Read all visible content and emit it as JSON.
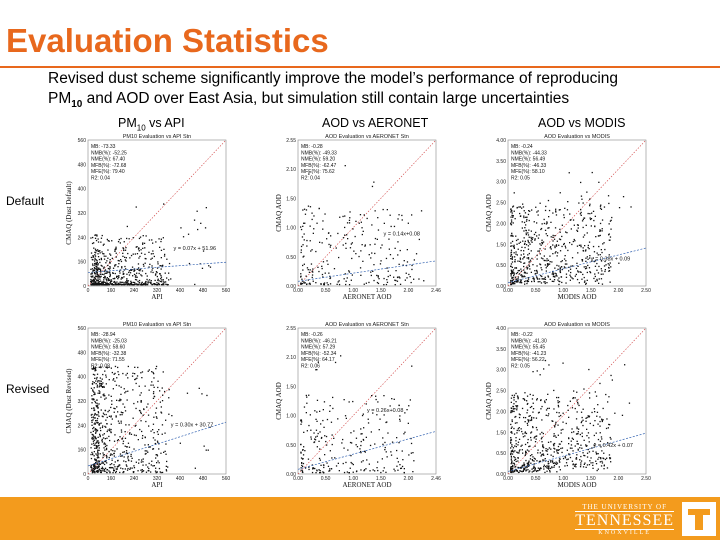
{
  "slide": {
    "title": "Evaluation Statistics",
    "subtitle_line1": "Revised dust scheme significantly improve the model’s performance of reproducing",
    "subtitle_line2_prefix": "PM",
    "subtitle_line2_sub": "10",
    "subtitle_line2_rest": " and AOD over East Asia, but simulation still contain large uncertainties"
  },
  "columns": [
    {
      "prefix": "PM",
      "sub": "10",
      "rest": " vs API"
    },
    {
      "prefix": "AOD vs AERONET",
      "sub": "",
      "rest": ""
    },
    {
      "prefix": "AOD vs MODIS",
      "sub": "",
      "rest": ""
    }
  ],
  "rows": {
    "default_label": "Default",
    "revised_label": "Revised"
  },
  "panels": [
    {
      "id": "pm-default",
      "title": "PM10 Evaluation vs API Stn",
      "xlabel": "API",
      "ylabel": "CMAQ (Dust Default)",
      "xticks": [
        "0",
        "160",
        "240",
        "320",
        "400",
        "480",
        "560"
      ],
      "yticks": [
        "560",
        "480",
        "400",
        "320",
        "240",
        "160",
        "0"
      ],
      "stats": [
        "MB: -73.33",
        "NMB(%): -52.25",
        "NME(%): 67.40",
        "MFB(%): -72.68",
        "MFE(%): 79.40",
        "R2: 0.04"
      ],
      "fit": "y = 0.07x + 51.96",
      "xmax": 560,
      "ymax": 560,
      "slope": 0.07,
      "intercept": 51.96,
      "fitx": 0.62,
      "fity": 0.52
    },
    {
      "id": "aeronet-default",
      "title": "AOD Evaluation vs AERONET Stn",
      "xlabel": "AERONET AOD",
      "ylabel": "CMAQ AOD",
      "xticks": [
        "0.00",
        "0.50",
        "1.00",
        "1.50",
        "2.00",
        "2.46"
      ],
      "yticks": [
        "2.55",
        "2.10",
        "1.50",
        "1.00",
        "0.50",
        "0.00"
      ],
      "stats": [
        "MB: -0.28",
        "NMB(%): -49.33",
        "NME(%): 59.20",
        "MFB(%): -62.47",
        "MFE(%): 75.62",
        "R2: 0.04"
      ],
      "fit": "y = 0.14x+0.08",
      "xmax": 2.5,
      "ymax": 2.5,
      "slope": 0.14,
      "intercept": 0.08,
      "fitx": 0.62,
      "fity": 0.62
    },
    {
      "id": "modis-default",
      "title": "AOD Evaluation vs MODIS",
      "xlabel": "MODIS AOD",
      "ylabel": "CMAQ AOD",
      "xticks": [
        "0.00",
        "0.50",
        "1.00",
        "1.50",
        "2.00",
        "2.50"
      ],
      "yticks": [
        "4.00",
        "3.50",
        "3.00",
        "2.50",
        "2.00",
        "1.50",
        "0.50",
        "0.00"
      ],
      "stats": [
        "MB: -0.24",
        "NMB(%): -44.33",
        "NME(%): 56.49",
        "MFB(%): -46.33",
        "MFE(%): 58.10",
        "R2: 0.05"
      ],
      "fit": "y = 0.38x + 0.09",
      "xmax": 2.5,
      "ymax": 4.0,
      "slope": 0.38,
      "intercept": 0.09,
      "fitx": 0.6,
      "fity": 0.45
    },
    {
      "id": "pm-revised",
      "title": "PM10 Evaluation vs API Stn",
      "xlabel": "API",
      "ylabel": "CMAQ (Dust Revised)",
      "xticks": [
        "0",
        "160",
        "240",
        "320",
        "400",
        "480",
        "560"
      ],
      "yticks": [
        "560",
        "480",
        "400",
        "320",
        "240",
        "160",
        "0"
      ],
      "stats": [
        "MB: -28.94",
        "NMB(%): -25.03",
        "NME(%): 58.60",
        "MFB(%): -32.38",
        "MFE(%): 71.55",
        "R2: 0.08"
      ],
      "fit": "y = 0.30x + 30.77",
      "xmax": 560,
      "ymax": 560,
      "slope": 0.3,
      "intercept": 30.77,
      "fitx": 0.6,
      "fity": 0.6
    },
    {
      "id": "aeronet-revised",
      "title": "AOD Evaluation vs AERONET Stn",
      "xlabel": "AERONET AOD",
      "ylabel": "CMAQ AOD",
      "xticks": [
        "0.00",
        "0.50",
        "1.00",
        "1.50",
        "2.00",
        "2.46"
      ],
      "yticks": [
        "2.55",
        "2.10",
        "1.50",
        "1.00",
        "0.50",
        "0.00"
      ],
      "stats": [
        "MB: -0.26",
        "NMB(%): -46.21",
        "NME(%): 57.29",
        "MFB(%): -52.34",
        "MFE(%): 64.17",
        "R2: 0.06"
      ],
      "fit": "y = 0.26x+0.08",
      "xmax": 2.5,
      "ymax": 2.5,
      "slope": 0.26,
      "intercept": 0.08,
      "fitx": 0.5,
      "fity": 0.7
    },
    {
      "id": "modis-revised",
      "title": "AOD Evaluation vs MODIS",
      "xlabel": "MODIS AOD",
      "ylabel": "CMAQ AOD",
      "xticks": [
        "0.00",
        "0.50",
        "1.00",
        "1.50",
        "2.00",
        "2.50"
      ],
      "yticks": [
        "4.00",
        "3.50",
        "3.00",
        "2.50",
        "2.00",
        "1.50",
        "0.50",
        "0.00"
      ],
      "stats": [
        "MB: -0.22",
        "NMB(%): -41.30",
        "NME(%): 55.45",
        "MFB(%): -41.23",
        "MFE(%): 56.22",
        "R2: 0.05"
      ],
      "fit": "y = 0.42x + 0.07",
      "xmax": 2.5,
      "ymax": 4.0,
      "slope": 0.42,
      "intercept": 0.07,
      "fitx": 0.62,
      "fity": 0.46
    }
  ],
  "logo": {
    "line1": "THE UNIVERSITY OF",
    "line2": "TENNESSEE",
    "line3": "KNOXVILLE",
    "mark": "T"
  },
  "colors": {
    "accent": "#e8681d",
    "footer": "#f39b1d",
    "fitline": "#3060b0",
    "oneToOne": "#d04040"
  }
}
